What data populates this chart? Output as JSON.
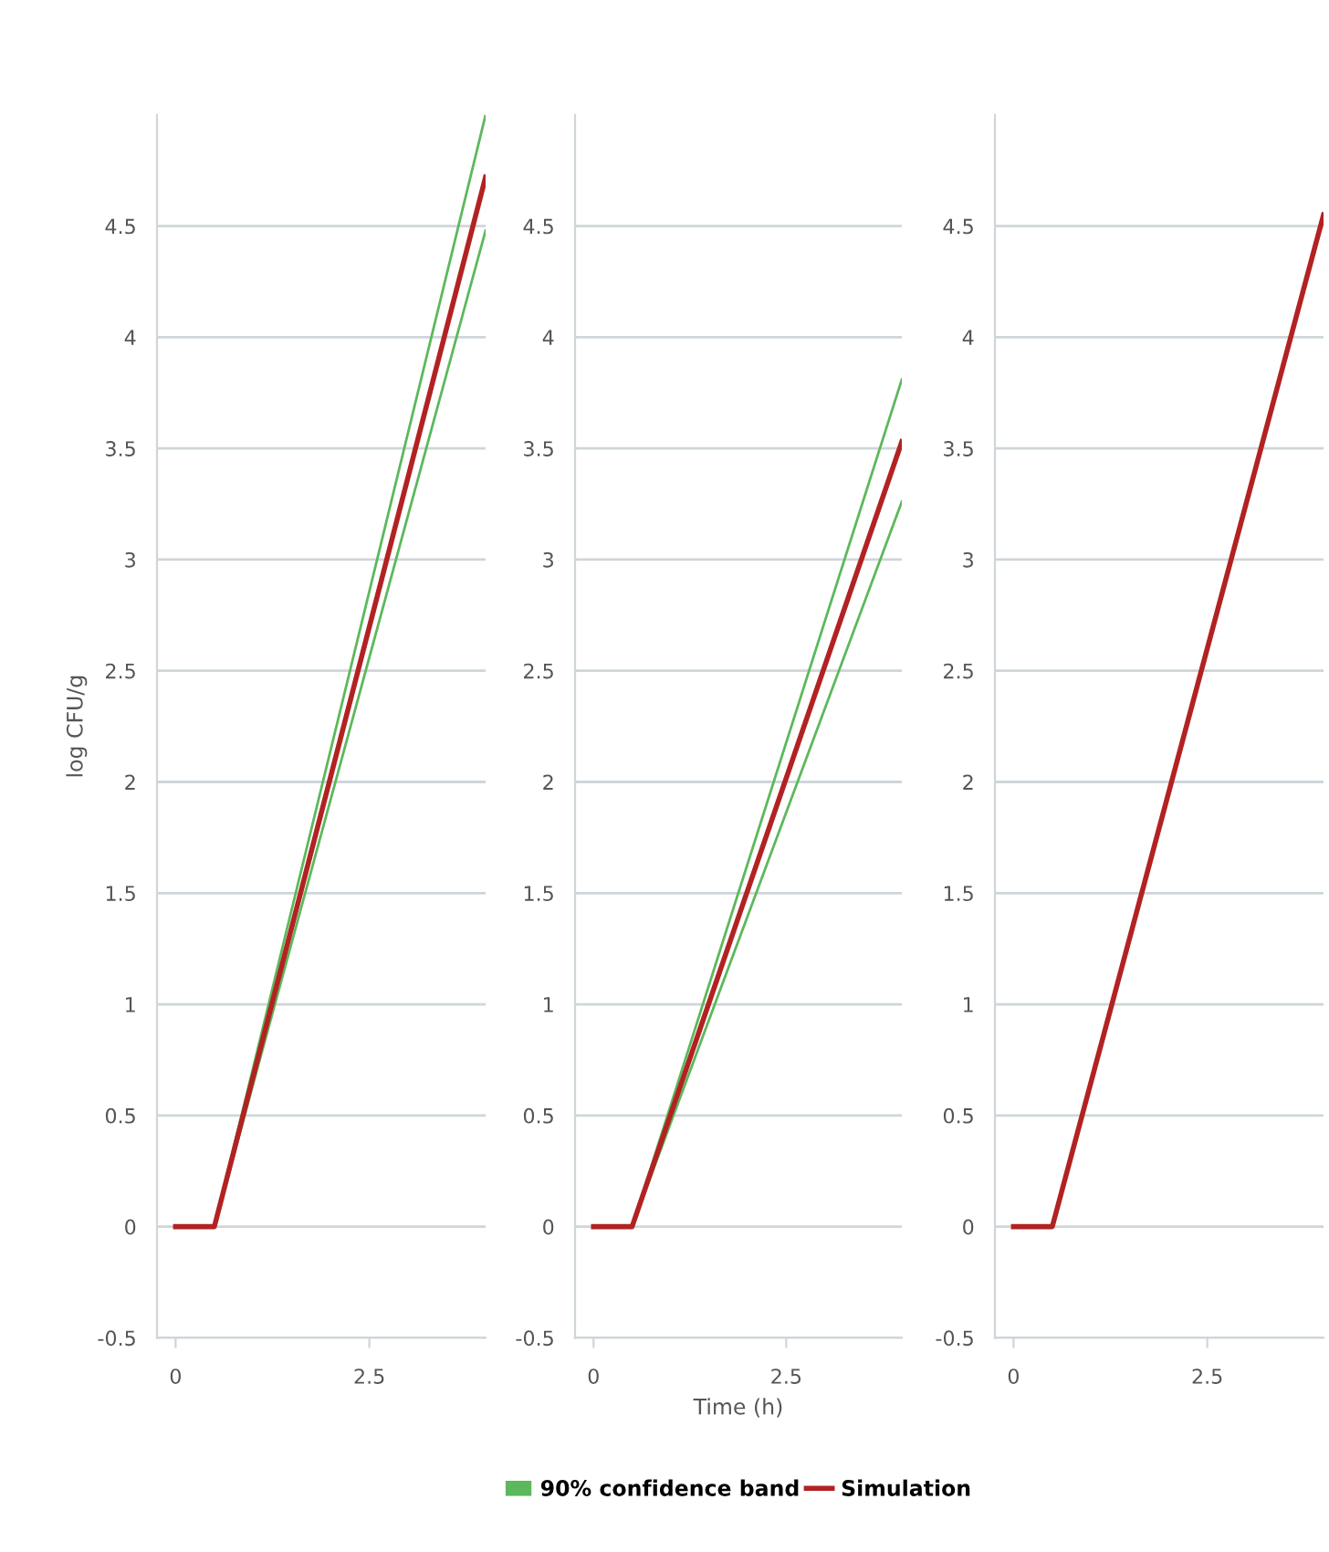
{
  "chart_data": [
    {
      "type": "line",
      "ylabel": "log CFU/g",
      "xlim": [
        -0.24,
        4
      ],
      "ylim": [
        -0.5,
        5
      ],
      "xticks": [
        0,
        2.5
      ],
      "yticks": [
        -0.5,
        0,
        0.5,
        1,
        1.5,
        2,
        2.5,
        3,
        3.5,
        4,
        4.5
      ],
      "grid": "y",
      "legend": false,
      "series": [
        {
          "color": "#5cb85c",
          "x": [
            0,
            0.5,
            4
          ],
          "values": [
            0,
            0,
            5.0
          ]
        },
        {
          "color": "#5cb85c",
          "x": [
            0,
            0.5,
            4
          ],
          "values": [
            0,
            0,
            4.48
          ]
        },
        {
          "color": "#b22222",
          "x": [
            0,
            0.5,
            4
          ],
          "values": [
            0,
            0,
            4.72
          ]
        }
      ]
    },
    {
      "type": "line",
      "xlabel": "Time (h)",
      "xlim": [
        -0.24,
        4
      ],
      "ylim": [
        -0.5,
        5
      ],
      "xticks": [
        0,
        2.5
      ],
      "yticks": [
        -0.5,
        0,
        0.5,
        1,
        1.5,
        2,
        2.5,
        3,
        3.5,
        4,
        4.5
      ],
      "grid": "y",
      "legend": "bottom",
      "series": [
        {
          "name": "90% confidence band",
          "color": "#5cb85c",
          "x": [
            0,
            0.5,
            4
          ],
          "values": [
            0,
            0,
            3.81
          ]
        },
        {
          "color": "#5cb85c",
          "x": [
            0,
            0.5,
            4
          ],
          "values": [
            0,
            0,
            3.26
          ]
        },
        {
          "name": "Simulation",
          "color": "#b22222",
          "x": [
            0,
            0.5,
            4
          ],
          "values": [
            0,
            0,
            3.53
          ]
        }
      ]
    },
    {
      "type": "line",
      "xlim": [
        -0.24,
        4
      ],
      "ylim": [
        -0.5,
        5
      ],
      "xticks": [
        0,
        2.5
      ],
      "yticks": [
        -0.5,
        0,
        0.5,
        1,
        1.5,
        2,
        2.5,
        3,
        3.5,
        4,
        4.5
      ],
      "grid": "y",
      "legend": false,
      "series": [
        {
          "color": "#b22222",
          "x": [
            0,
            0.5,
            4
          ],
          "values": [
            0,
            0,
            4.55
          ]
        }
      ]
    }
  ]
}
